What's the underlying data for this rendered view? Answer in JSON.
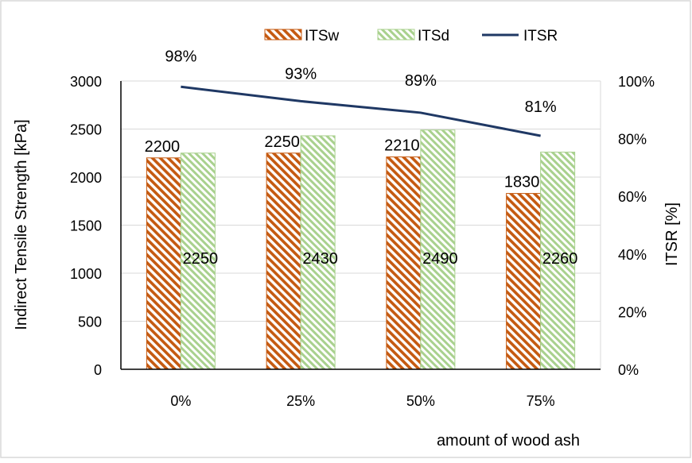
{
  "chart_data": {
    "type": "bar",
    "categories": [
      "0%",
      "25%",
      "50%",
      "75%"
    ],
    "series": [
      {
        "name": "ITSw",
        "kind": "bar",
        "axis": "left",
        "values": [
          2200,
          2250,
          2210,
          1830
        ],
        "labels": [
          "2200",
          "2250",
          "2210",
          "1830"
        ],
        "color": "#c55a11",
        "pattern": "diagonal-stripes"
      },
      {
        "name": "ITSd",
        "kind": "bar",
        "axis": "left",
        "values": [
          2250,
          2430,
          2490,
          2260
        ],
        "labels": [
          "2250",
          "2430",
          "2490",
          "2260"
        ],
        "color": "#a9d18e",
        "pattern": "diagonal-stripes"
      },
      {
        "name": "ITSR",
        "kind": "line",
        "axis": "right",
        "values": [
          98,
          93,
          89,
          81
        ],
        "labels": [
          "98%",
          "93%",
          "89%",
          "81%"
        ],
        "color": "#1f3864"
      }
    ],
    "xlabel": "amount of wood ash",
    "ylabel": "Indirect Tensile Strength   [kPa]",
    "y2label": "ITSR [%]",
    "ylim": [
      0,
      3000
    ],
    "y2lim": [
      0,
      100
    ],
    "yticks": [
      0,
      500,
      1000,
      1500,
      2000,
      2500,
      3000
    ],
    "y2ticks": [
      "0%",
      "20%",
      "40%",
      "60%",
      "80%",
      "100%"
    ],
    "y2tick_values": [
      0,
      20,
      40,
      60,
      80,
      100
    ],
    "grid": true,
    "legend_position": "top"
  }
}
